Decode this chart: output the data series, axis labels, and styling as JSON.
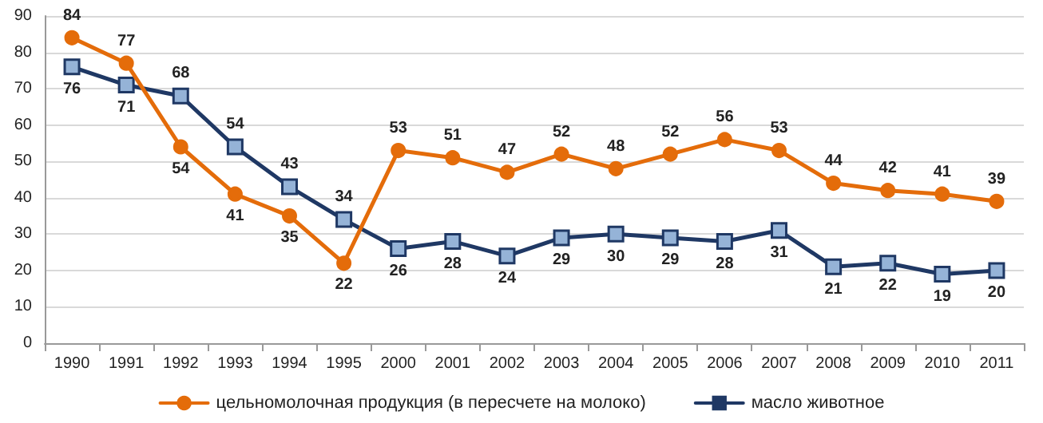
{
  "chart_data": {
    "type": "line",
    "categories": [
      "1990",
      "1991",
      "1992",
      "1993",
      "1994",
      "1995",
      "2000",
      "2001",
      "2002",
      "2003",
      "2004",
      "2005",
      "2006",
      "2007",
      "2008",
      "2009",
      "2010",
      "2011"
    ],
    "series": [
      {
        "name": "цельномолочная продукция (в пересчете на молоко)",
        "color": "#e46c0a",
        "marker": "circle",
        "values": [
          84,
          77,
          54,
          41,
          35,
          22,
          53,
          51,
          47,
          52,
          48,
          52,
          56,
          53,
          44,
          42,
          41,
          39
        ]
      },
      {
        "name": "масло животное",
        "color": "#1f3864",
        "marker": "square",
        "values": [
          76,
          71,
          68,
          54,
          43,
          34,
          26,
          28,
          24,
          29,
          30,
          29,
          28,
          31,
          21,
          22,
          19,
          20
        ]
      }
    ],
    "ylim": [
      0,
      90
    ],
    "yticks": [
      0,
      10,
      20,
      30,
      40,
      50,
      60,
      70,
      80,
      90
    ],
    "grid": "y",
    "legend": "bottom",
    "data_labels": true,
    "line_style": "solid"
  }
}
